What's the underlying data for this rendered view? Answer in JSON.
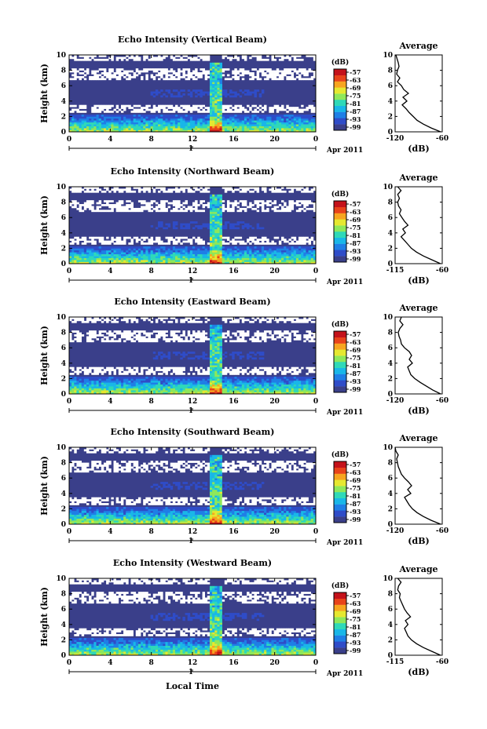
{
  "figure": {
    "xlabel": "Local Time",
    "date_label": "Apr 2011",
    "day_tick": "1"
  },
  "colors": {
    "background_echo": "#3a3f8a",
    "colormap": [
      "#3a3f8a",
      "#2f4cc8",
      "#1f7fe6",
      "#19b7e8",
      "#2fd9b8",
      "#8fe85a",
      "#e6e830",
      "#f7a51f",
      "#e8431a",
      "#c4121a"
    ]
  },
  "chart_data": [
    {
      "type": "heatmap",
      "title": "Echo Intensity (Vertical Beam)",
      "ylabel": "Height (km)",
      "x_ticks": [
        "0",
        "4",
        "8",
        "12",
        "16",
        "20",
        "0"
      ],
      "y_ticks": [
        "0",
        "2",
        "4",
        "6",
        "8",
        "10"
      ],
      "xlim": [
        0,
        24
      ],
      "ylim": [
        0,
        10
      ],
      "colorbar": {
        "unit": "(dB)",
        "ticks": [
          "-57",
          "-63",
          "-69",
          "-75",
          "-81",
          "-87",
          "-93",
          "-99"
        ]
      },
      "average": {
        "title": "Average",
        "xlabel": "(dB)",
        "x_ticks": [
          "-120",
          "-60"
        ],
        "y_ticks": [
          "0",
          "2",
          "4",
          "6",
          "8",
          "10"
        ],
        "xlim": [
          -120,
          -60
        ],
        "profile": [
          [
            0,
            -62
          ],
          [
            0.5,
            -74
          ],
          [
            1,
            -84
          ],
          [
            1.5,
            -92
          ],
          [
            2,
            -97
          ],
          [
            2.5,
            -102
          ],
          [
            3,
            -106
          ],
          [
            3.5,
            -111
          ],
          [
            4,
            -105
          ],
          [
            4.5,
            -110
          ],
          [
            5,
            -103
          ],
          [
            5.5,
            -109
          ],
          [
            6,
            -112
          ],
          [
            6.5,
            -117
          ],
          [
            7,
            -114
          ],
          [
            7.5,
            -118
          ],
          [
            8,
            -117
          ],
          [
            8.5,
            -115
          ],
          [
            9,
            -116
          ],
          [
            10,
            -119
          ]
        ]
      }
    },
    {
      "type": "heatmap",
      "title": "Echo Intensity (Northward Beam)",
      "ylabel": "Height (km)",
      "x_ticks": [
        "0",
        "4",
        "8",
        "12",
        "16",
        "20",
        "0"
      ],
      "y_ticks": [
        "0",
        "2",
        "4",
        "6",
        "8",
        "10"
      ],
      "xlim": [
        0,
        24
      ],
      "ylim": [
        0,
        10
      ],
      "colorbar": {
        "unit": "(dB)",
        "ticks": [
          "-57",
          "-63",
          "-69",
          "-75",
          "-81",
          "-87",
          "-93",
          "-99"
        ]
      },
      "average": {
        "title": "Average",
        "xlabel": "(dB)",
        "x_ticks": [
          "-115",
          "-60"
        ],
        "y_ticks": [
          "0",
          "2",
          "4",
          "6",
          "8",
          "10"
        ],
        "xlim": [
          -115,
          -60
        ],
        "profile": [
          [
            0,
            -62
          ],
          [
            0.5,
            -72
          ],
          [
            1,
            -82
          ],
          [
            1.5,
            -90
          ],
          [
            2,
            -96
          ],
          [
            2.5,
            -100
          ],
          [
            3,
            -104
          ],
          [
            3.5,
            -108
          ],
          [
            4,
            -103
          ],
          [
            4.5,
            -106
          ],
          [
            5,
            -100
          ],
          [
            5.5,
            -104
          ],
          [
            6,
            -107
          ],
          [
            6.5,
            -110
          ],
          [
            7,
            -108
          ],
          [
            7.5,
            -111
          ],
          [
            8,
            -112
          ],
          [
            8.5,
            -110
          ],
          [
            9,
            -112
          ],
          [
            9.5,
            -108
          ],
          [
            10,
            -112
          ]
        ]
      }
    },
    {
      "type": "heatmap",
      "title": "Echo Intensity (Eastward Beam)",
      "ylabel": "Height (km)",
      "x_ticks": [
        "0",
        "4",
        "8",
        "12",
        "16",
        "20",
        "0"
      ],
      "y_ticks": [
        "0",
        "2",
        "4",
        "6",
        "8",
        "10"
      ],
      "xlim": [
        0,
        24
      ],
      "ylim": [
        0,
        10
      ],
      "colorbar": {
        "unit": "(dB)",
        "ticks": [
          "-57",
          "-63",
          "-69",
          "-75",
          "-81",
          "-87",
          "-93",
          "-99"
        ]
      },
      "average": {
        "title": "Average",
        "xlabel": "(dB)",
        "x_ticks": [
          "-120",
          "-60"
        ],
        "y_ticks": [
          "0",
          "2",
          "4",
          "6",
          "8",
          "10"
        ],
        "xlim": [
          -120,
          -60
        ],
        "profile": [
          [
            0,
            -62
          ],
          [
            0.5,
            -72
          ],
          [
            1,
            -80
          ],
          [
            1.5,
            -88
          ],
          [
            2,
            -95
          ],
          [
            2.5,
            -100
          ],
          [
            3,
            -102
          ],
          [
            3.5,
            -104
          ],
          [
            4,
            -98
          ],
          [
            4.5,
            -102
          ],
          [
            5,
            -99
          ],
          [
            5.5,
            -102
          ],
          [
            6,
            -108
          ],
          [
            6.5,
            -112
          ],
          [
            7,
            -113
          ],
          [
            7.5,
            -115
          ],
          [
            8,
            -116
          ],
          [
            8.5,
            -114
          ],
          [
            9,
            -110
          ],
          [
            9.5,
            -114
          ],
          [
            10,
            -112
          ]
        ]
      }
    },
    {
      "type": "heatmap",
      "title": "Echo Intensity (Southward Beam)",
      "ylabel": "Height (km)",
      "x_ticks": [
        "0",
        "4",
        "8",
        "12",
        "16",
        "20",
        "0"
      ],
      "y_ticks": [
        "0",
        "2",
        "4",
        "6",
        "8",
        "10"
      ],
      "xlim": [
        0,
        24
      ],
      "ylim": [
        0,
        10
      ],
      "colorbar": {
        "unit": "(dB)",
        "ticks": [
          "-57",
          "-63",
          "-69",
          "-75",
          "-81",
          "-87",
          "-93",
          "-99"
        ]
      },
      "average": {
        "title": "Average",
        "xlabel": "(dB)",
        "x_ticks": [
          "-120",
          "-60"
        ],
        "y_ticks": [
          "0",
          "2",
          "4",
          "6",
          "8",
          "10"
        ],
        "xlim": [
          -120,
          -60
        ],
        "profile": [
          [
            0,
            -62
          ],
          [
            0.5,
            -74
          ],
          [
            1,
            -84
          ],
          [
            1.5,
            -92
          ],
          [
            2,
            -98
          ],
          [
            2.5,
            -102
          ],
          [
            3,
            -105
          ],
          [
            3.5,
            -108
          ],
          [
            4,
            -100
          ],
          [
            4.5,
            -104
          ],
          [
            5,
            -99
          ],
          [
            5.5,
            -103
          ],
          [
            6,
            -108
          ],
          [
            6.5,
            -112
          ],
          [
            7,
            -114
          ],
          [
            7.5,
            -116
          ],
          [
            8,
            -117
          ],
          [
            8.5,
            -118
          ],
          [
            9,
            -116
          ],
          [
            9.5,
            -119
          ],
          [
            10,
            -120
          ]
        ]
      }
    },
    {
      "type": "heatmap",
      "title": "Echo Intensity (Westward Beam)",
      "ylabel": "Height (km)",
      "x_ticks": [
        "0",
        "4",
        "8",
        "12",
        "16",
        "20",
        "0"
      ],
      "y_ticks": [
        "0",
        "2",
        "4",
        "6",
        "8",
        "10"
      ],
      "xlim": [
        0,
        24
      ],
      "ylim": [
        0,
        10
      ],
      "colorbar": {
        "unit": "(dB)",
        "ticks": [
          "-57",
          "-63",
          "-69",
          "-75",
          "-81",
          "-87",
          "-93",
          "-99"
        ]
      },
      "average": {
        "title": "Average",
        "xlabel": "(dB)",
        "x_ticks": [
          "-115",
          "-60"
        ],
        "y_ticks": [
          "0",
          "2",
          "4",
          "6",
          "8",
          "10"
        ],
        "xlim": [
          -115,
          -60
        ],
        "profile": [
          [
            0,
            -62
          ],
          [
            0.5,
            -72
          ],
          [
            1,
            -82
          ],
          [
            1.5,
            -90
          ],
          [
            2,
            -96
          ],
          [
            2.5,
            -100
          ],
          [
            3,
            -102
          ],
          [
            3.5,
            -104
          ],
          [
            4,
            -100
          ],
          [
            4.5,
            -103
          ],
          [
            5,
            -97
          ],
          [
            5.5,
            -101
          ],
          [
            6,
            -104
          ],
          [
            6.5,
            -106
          ],
          [
            7,
            -108
          ],
          [
            7.5,
            -110
          ],
          [
            8,
            -109
          ],
          [
            8.5,
            -112
          ],
          [
            9,
            -111
          ],
          [
            9.5,
            -108
          ],
          [
            10,
            -112
          ]
        ]
      }
    }
  ]
}
